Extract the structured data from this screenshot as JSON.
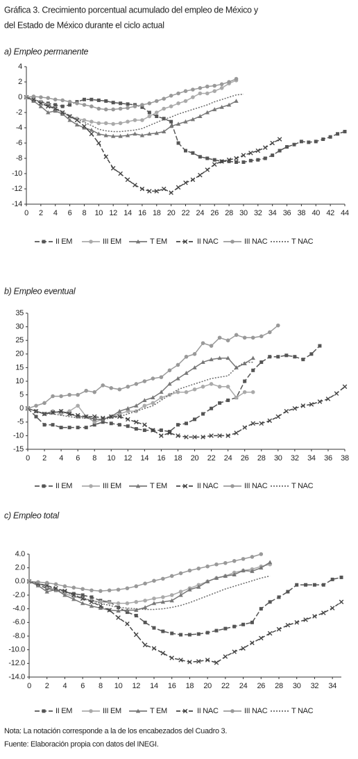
{
  "header": {
    "title_lines": [
      "Gráfica 3. Crecimiento porcentual acumulado del empleo de México y",
      "del Estado de México durante el ciclo actual"
    ]
  },
  "notes": [
    "Nota: La notación corresponde a la de los encabezados del Cuadro 3.",
    "Fuente: Elaboración propia con datos del INEGI."
  ],
  "chart_data": [
    {
      "type": "line",
      "title": "a) Empleo permanente",
      "x": [
        0,
        1,
        2,
        3,
        4,
        5,
        6,
        7,
        8,
        9,
        10,
        11,
        12,
        13,
        14,
        15,
        16,
        17,
        18,
        19,
        20,
        21,
        22,
        23,
        24,
        25,
        26,
        27,
        28,
        29,
        30,
        31,
        32,
        33,
        34,
        35,
        36,
        37,
        38,
        39,
        40,
        41,
        42,
        43,
        44
      ],
      "xlim": [
        0,
        44
      ],
      "xticks": [
        0,
        2,
        4,
        6,
        8,
        10,
        12,
        14,
        16,
        18,
        20,
        22,
        24,
        26,
        28,
        30,
        32,
        34,
        36,
        38,
        40,
        42,
        44
      ],
      "ylim": [
        -14,
        4
      ],
      "yticks": [
        4,
        2,
        0,
        -2,
        -4,
        -6,
        -8,
        -10,
        -12,
        -14
      ],
      "series": [
        {
          "name": "II EM",
          "color": "#555555",
          "marker": "square",
          "dash": "7 3",
          "values": [
            0,
            -0.3,
            -0.6,
            -0.8,
            -1,
            -1.2,
            -1,
            -0.6,
            -0.3,
            -0.3,
            -0.4,
            -0.5,
            -0.7,
            -0.8,
            -0.9,
            -1,
            -1.3,
            -2,
            -2.5,
            -2.8,
            -3.2,
            -6,
            -7,
            -7.3,
            -7.8,
            -8,
            -8.2,
            -8.4,
            -8.4,
            -8.5,
            -8.5,
            -8.3,
            -8.2,
            -8,
            -7.6,
            -7,
            -6.5,
            -6.2,
            -5.8,
            -5.9,
            -5.8,
            -5.5,
            -5.2,
            -4.8,
            -4.5
          ]
        },
        {
          "name": "III EM",
          "color": "#aaaaaa",
          "marker": "circle",
          "dash": "solid",
          "values": [
            0,
            -0.3,
            -0.6,
            -1,
            -1.5,
            -2,
            -2.5,
            -2.8,
            -3,
            -3.2,
            -3.4,
            -3.4,
            -3.5,
            -3.4,
            -3.2,
            -3,
            -3,
            -2.5,
            -2,
            -1.5,
            -1.2,
            -0.8,
            -0.5,
            0,
            0.5,
            0.5,
            0.8,
            1.2,
            1.8,
            2.2,
            null,
            null,
            null,
            null,
            null,
            null,
            null,
            null,
            null,
            null,
            null,
            null,
            null,
            null,
            null
          ]
        },
        {
          "name": "T EM",
          "color": "#777777",
          "marker": "triangle",
          "dash": "solid",
          "values": [
            0,
            -0.5,
            -1.2,
            -2,
            -1.8,
            -2.2,
            -3,
            -3.6,
            -4,
            -4.3,
            -4.8,
            -5,
            -5.1,
            -5.1,
            -5,
            -4.8,
            -5,
            -4.8,
            -4.7,
            -4.5,
            -3.8,
            -3.5,
            -3.2,
            -2.9,
            -2.5,
            -2,
            -1.6,
            -1.3,
            -1,
            -0.5,
            null,
            null,
            null,
            null,
            null,
            null,
            null,
            null,
            null,
            null,
            null,
            null,
            null,
            null,
            null
          ]
        },
        {
          "name": "II NAC",
          "color": "#444444",
          "marker": "x",
          "dash": "6 3",
          "values": [
            0,
            -0.3,
            -0.8,
            -1.2,
            -1.5,
            -2,
            -2.5,
            -3,
            -3.8,
            -4.8,
            -6,
            -7.8,
            -9.3,
            -10,
            -10.8,
            -11.5,
            -12,
            -12.3,
            -12.3,
            -12,
            -12.5,
            -11.8,
            -11.2,
            -10.8,
            -10.2,
            -9.5,
            -8.8,
            -8.4,
            -8.2,
            -8,
            -7.6,
            -7.3,
            -7,
            -6.6,
            -6,
            -5.5,
            null,
            null,
            null,
            null,
            null,
            null,
            null,
            null,
            null
          ]
        },
        {
          "name": "III NAC",
          "color": "#999999",
          "marker": "circle",
          "dash": "solid",
          "values": [
            0,
            0.1,
            0,
            -0.1,
            -0.3,
            -0.4,
            -0.6,
            -0.8,
            -1,
            -1.2,
            -1.5,
            -1.6,
            -1.6,
            -1.5,
            -1.4,
            -1.2,
            -1,
            -0.8,
            -0.5,
            -0.2,
            0.2,
            0.5,
            0.8,
            1,
            1.2,
            1.4,
            1.5,
            1.7,
            2,
            2.4,
            null,
            null,
            null,
            null,
            null,
            null,
            null,
            null,
            null,
            null,
            null,
            null,
            null,
            null,
            null
          ]
        },
        {
          "name": "T NAC",
          "color": "#666666",
          "marker": "none",
          "dash": "2 2",
          "values": [
            0,
            -0.3,
            -0.6,
            -1,
            -1.4,
            -1.9,
            -2.4,
            -2.9,
            -3.3,
            -3.7,
            -4.2,
            -4.4,
            -4.5,
            -4.5,
            -4.4,
            -4.3,
            -4.1,
            -3.7,
            -3.3,
            -2.9,
            -2.6,
            -2.2,
            -1.9,
            -1.6,
            -1.3,
            -1,
            -0.6,
            -0.3,
            0,
            0.3,
            0.4,
            null,
            null,
            null,
            null,
            null,
            null,
            null,
            null,
            null,
            null,
            null,
            null,
            null,
            null
          ]
        }
      ]
    },
    {
      "type": "line",
      "title": "b) Empleo eventual",
      "x": [
        0,
        1,
        2,
        3,
        4,
        5,
        6,
        7,
        8,
        9,
        10,
        11,
        12,
        13,
        14,
        15,
        16,
        17,
        18,
        19,
        20,
        21,
        22,
        23,
        24,
        25,
        26,
        27,
        28,
        29,
        30,
        31,
        32,
        33,
        34,
        35,
        36,
        37,
        38
      ],
      "xlim": [
        0,
        38
      ],
      "xticks": [
        0,
        2,
        4,
        6,
        8,
        10,
        12,
        14,
        16,
        18,
        20,
        22,
        24,
        26,
        28,
        30,
        32,
        34,
        36,
        38
      ],
      "ylim": [
        -15,
        35
      ],
      "yticks": [
        35,
        30,
        25,
        20,
        15,
        10,
        5,
        0,
        -5,
        -10,
        -15
      ],
      "series": [
        {
          "name": "II EM",
          "color": "#555555",
          "marker": "square",
          "dash": "7 3",
          "values": [
            0,
            -3,
            -6,
            -6,
            -7,
            -7,
            -7,
            -7,
            -6,
            -5,
            -5.5,
            -6,
            -6.5,
            -7.5,
            -8,
            -8,
            -8,
            -8.5,
            -6,
            -5.5,
            -4,
            -2,
            0,
            2,
            3,
            4,
            10,
            14,
            17,
            19,
            19,
            19.5,
            19,
            18,
            20,
            23,
            null,
            null,
            null
          ]
        },
        {
          "name": "III EM",
          "color": "#aaaaaa",
          "marker": "circle",
          "dash": "solid",
          "values": [
            0,
            -1,
            -2,
            -1,
            -2,
            -1,
            1,
            -3,
            -5,
            -4,
            -3,
            -2,
            -1,
            -1,
            1,
            2,
            4,
            5,
            6,
            6,
            7,
            8,
            9,
            8,
            8,
            4,
            6,
            6,
            null,
            null,
            null,
            null,
            null,
            null,
            null,
            null,
            null,
            null,
            null
          ]
        },
        {
          "name": "T EM",
          "color": "#777777",
          "marker": "triangle",
          "dash": "solid",
          "values": [
            0,
            -1,
            -2,
            -1.5,
            -1,
            -2,
            -3,
            -3,
            -4,
            -4,
            -3,
            -1,
            0,
            1,
            3,
            4,
            6,
            9,
            11,
            13,
            15,
            17,
            18,
            18.5,
            18.5,
            15,
            16.5,
            18.5,
            null,
            null,
            null,
            null,
            null,
            null,
            null,
            null,
            null,
            null,
            null
          ]
        },
        {
          "name": "II NAC",
          "color": "#444444",
          "marker": "x",
          "dash": "6 3",
          "values": [
            0,
            -1,
            -2,
            -1.5,
            -1,
            -2,
            -2.5,
            -3,
            -3,
            -3.5,
            -3,
            -3,
            -4,
            -5,
            -6,
            -8,
            -10,
            -9,
            -10,
            -10.5,
            -10.5,
            -10.5,
            -10,
            -10,
            -10,
            -9,
            -7,
            -5.5,
            -5.5,
            -4.5,
            -3,
            -1,
            0,
            1,
            1.5,
            2.5,
            3.5,
            5.5,
            8
          ]
        },
        {
          "name": "III NAC",
          "color": "#999999",
          "marker": "circle",
          "dash": "solid",
          "values": [
            0,
            1,
            2,
            4.5,
            4.5,
            5,
            5,
            6.5,
            6,
            8.5,
            7.5,
            7,
            8,
            9,
            10,
            11,
            11.5,
            14,
            16,
            19,
            20,
            24,
            23,
            26,
            25,
            27,
            26,
            26,
            26.5,
            28,
            30.5,
            null,
            null,
            null,
            null,
            null,
            null,
            null,
            null
          ]
        },
        {
          "name": "T NAC",
          "color": "#666666",
          "marker": "none",
          "dash": "2 2",
          "values": [
            0,
            -1,
            -2,
            -2,
            -2.5,
            -3,
            -3.5,
            -3.5,
            -4,
            -4,
            -3.5,
            -3,
            -2,
            -1,
            0,
            1,
            3,
            5,
            7,
            8,
            9,
            10,
            11,
            11.5,
            12,
            15,
            17,
            17,
            null,
            null,
            null,
            null,
            null,
            null,
            null,
            null,
            null,
            null,
            null
          ]
        }
      ]
    },
    {
      "type": "line",
      "title": "c) Empleo total",
      "x": [
        0,
        1,
        2,
        3,
        4,
        5,
        6,
        7,
        8,
        9,
        10,
        11,
        12,
        13,
        14,
        15,
        16,
        17,
        18,
        19,
        20,
        21,
        22,
        23,
        24,
        25,
        26,
        27,
        28,
        29,
        30,
        31,
        32,
        33,
        34,
        35
      ],
      "xlim": [
        0,
        35
      ],
      "xticks": [
        0,
        2,
        4,
        6,
        8,
        10,
        12,
        14,
        16,
        18,
        20,
        22,
        24,
        26,
        28,
        30,
        32,
        34
      ],
      "ylim": [
        -14,
        4
      ],
      "yticks": [
        {
          "value": 4,
          "label": "4.0"
        },
        {
          "value": 2,
          "label": "2.0"
        },
        {
          "value": 0,
          "label": "0.0"
        },
        {
          "value": -2,
          "label": "-2.0"
        },
        {
          "value": -4,
          "label": "-4.0"
        },
        {
          "value": -6,
          "label": "-6.0"
        },
        {
          "value": -8,
          "label": "-8.0"
        },
        {
          "value": -10,
          "label": "-10.0"
        },
        {
          "value": -12,
          "label": "-12.0"
        },
        {
          "value": -14,
          "label": "-14.0"
        }
      ],
      "series": [
        {
          "name": "II EM",
          "color": "#555555",
          "marker": "square",
          "dash": "7 3",
          "values": [
            0,
            -0.5,
            -1,
            -1.3,
            -1.5,
            -1.8,
            -2,
            -2.3,
            -2.8,
            -3,
            -3.8,
            -4.5,
            -5,
            -6,
            -6.8,
            -7.3,
            -7.6,
            -7.8,
            -7.8,
            -7.7,
            -7.5,
            -7.2,
            -6.9,
            -6.6,
            -6.3,
            -6,
            -4,
            -3,
            -2.3,
            -1.5,
            -0.5,
            -0.5,
            -0.5,
            -0.5,
            0.3,
            0.6
          ]
        },
        {
          "name": "III EM",
          "color": "#aaaaaa",
          "marker": "circle",
          "dash": "solid",
          "values": [
            0,
            -0.3,
            -0.8,
            -1.3,
            -1.8,
            -2.2,
            -2.5,
            -2.8,
            -3,
            -3.1,
            -3.2,
            -3.2,
            -3,
            -2.8,
            -2.5,
            -2.3,
            -2,
            -1.5,
            -1,
            -0.5,
            0,
            0.5,
            0.8,
            1.3,
            1.6,
            1.8,
            2.2,
            2.5,
            null,
            null,
            null,
            null,
            null,
            null,
            null,
            null
          ]
        },
        {
          "name": "T EM",
          "color": "#777777",
          "marker": "triangle",
          "dash": "solid",
          "values": [
            0,
            -0.6,
            -1.5,
            -1.2,
            -2,
            -2.6,
            -3.2,
            -3.6,
            -3.9,
            -4.2,
            -4.3,
            -4.2,
            -4.2,
            -3.8,
            -3.2,
            -3,
            -2.8,
            -2,
            -1.2,
            -0.8,
            0,
            0.5,
            0.8,
            1,
            1.6,
            1.5,
            2,
            2.8,
            null,
            null,
            null,
            null,
            null,
            null,
            null,
            null
          ]
        },
        {
          "name": "II NAC",
          "color": "#444444",
          "marker": "x",
          "dash": "6 3",
          "values": [
            0,
            -0.3,
            -0.6,
            -1,
            -1.4,
            -2,
            -2.5,
            -3,
            -3.6,
            -4.2,
            -5.3,
            -6.2,
            -7.8,
            -9.3,
            -9.8,
            -10.5,
            -11.2,
            -11.5,
            -11.8,
            -11.7,
            -11.5,
            -11.9,
            -11,
            -10.3,
            -9.8,
            -9,
            -8.3,
            -7.6,
            -7,
            -6.4,
            -6,
            -5.6,
            -5.1,
            -4.6,
            -3.9,
            -3
          ]
        },
        {
          "name": "III NAC",
          "color": "#999999",
          "marker": "circle",
          "dash": "solid",
          "values": [
            0,
            -0.1,
            -0.2,
            -0.4,
            -0.7,
            -0.9,
            -1.1,
            -1.3,
            -1.4,
            -1.3,
            -1.2,
            -1,
            -0.7,
            -0.3,
            0.1,
            0.4,
            0.8,
            1.2,
            1.6,
            1.9,
            2.2,
            2.5,
            2.7,
            3,
            3.3,
            3.6,
            4,
            null,
            null,
            null,
            null,
            null,
            null,
            null,
            null,
            null
          ]
        },
        {
          "name": "T NAC",
          "color": "#666666",
          "marker": "none",
          "dash": "2 2",
          "values": [
            0,
            -0.3,
            -0.7,
            -1.1,
            -1.5,
            -2,
            -2.4,
            -2.8,
            -3.2,
            -3.5,
            -3.8,
            -3.9,
            -4,
            -4.1,
            -4.1,
            -4,
            -3.8,
            -3.5,
            -3.1,
            -2.6,
            -2.1,
            -1.6,
            -1.1,
            -0.7,
            -0.3,
            0.1,
            0.5,
            0.8,
            null,
            null,
            null,
            null,
            null,
            null,
            null,
            null
          ]
        }
      ]
    }
  ]
}
